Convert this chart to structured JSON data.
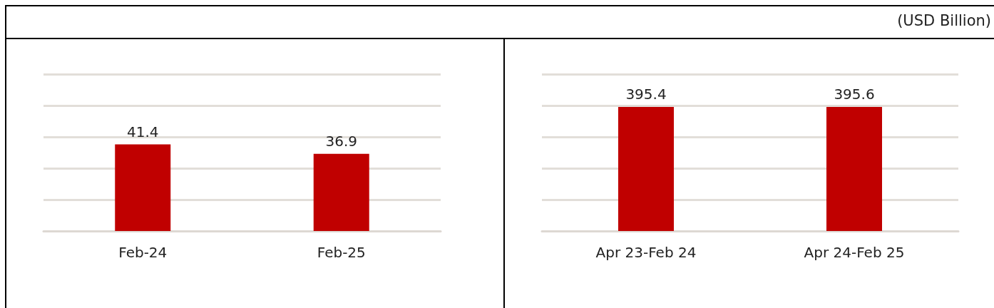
{
  "chart_data": [
    {
      "type": "bar",
      "categories": [
        "Feb-24",
        "Feb-25"
      ],
      "values": [
        41.4,
        36.9
      ],
      "color": "#c00000",
      "data_labels": true,
      "ylim": [
        0,
        75
      ],
      "yticks": [
        0,
        15,
        30,
        45,
        60,
        75
      ],
      "tick_labels": "x",
      "grid": "y"
    },
    {
      "type": "bar",
      "categories": [
        "Apr 23-Feb 24",
        "Apr 24-Feb 25"
      ],
      "values": [
        395.4,
        395.6
      ],
      "color": "#c00000",
      "data_labels": true,
      "ylim": [
        0,
        500
      ],
      "yticks": [
        0,
        100,
        200,
        300,
        400,
        500
      ],
      "tick_labels": "x",
      "grid": "y",
      "annotations": [
        "(USD Billion)"
      ]
    }
  ]
}
